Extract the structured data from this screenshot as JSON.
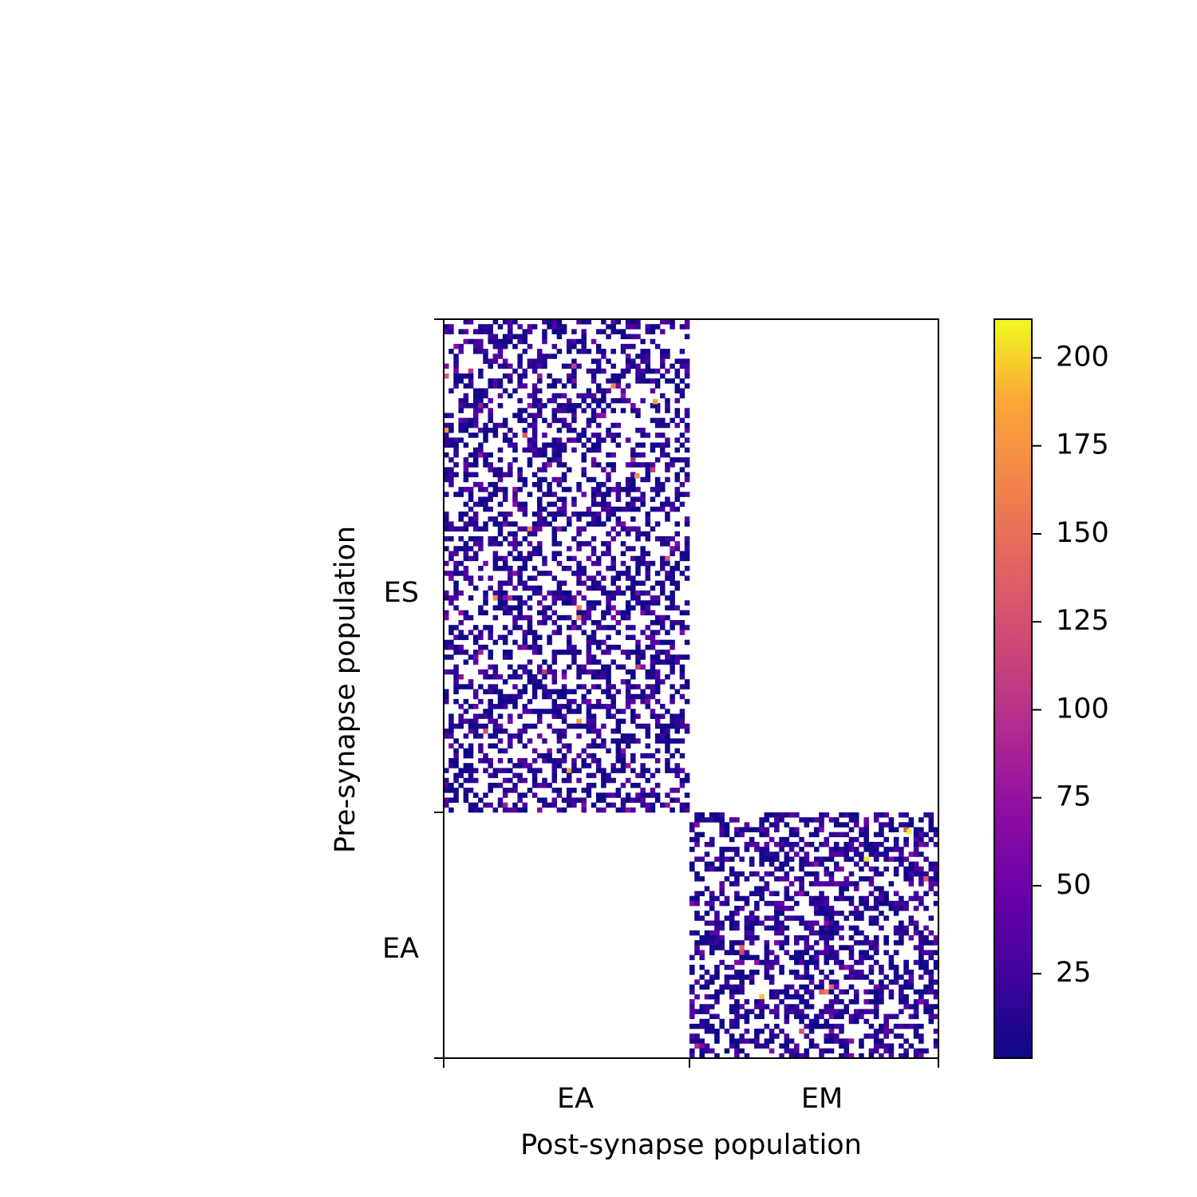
{
  "chart_data": {
    "type": "heatmap",
    "title": "",
    "xlabel": "Post-synapse population",
    "ylabel": "Pre-synapse population",
    "x_categories": [
      "EA",
      "EM"
    ],
    "y_categories": [
      "ES",
      "EA"
    ],
    "blocks": [
      {
        "pre": "ES",
        "post": "EA",
        "rows": 100,
        "cols": 50,
        "density": 0.45,
        "typical_weight_range": [
          1,
          40
        ],
        "peak_weight": 185
      },
      {
        "pre": "ES",
        "post": "EM",
        "rows": 100,
        "cols": 50,
        "density": 0.0
      },
      {
        "pre": "EA",
        "pre_rows": 50,
        "post": "EA",
        "cols": 50,
        "density": 0.0
      },
      {
        "pre": "EA",
        "post": "EM",
        "rows": 50,
        "cols": 50,
        "density": 0.5,
        "typical_weight_range": [
          1,
          40
        ],
        "peak_weight": 210
      }
    ],
    "colormap": "plasma",
    "colorbar": {
      "min": 1,
      "max": 211,
      "ticks": [
        25,
        50,
        75,
        100,
        125,
        150,
        175,
        200
      ],
      "tick_labels": [
        "25",
        "50",
        "75",
        "100",
        "125",
        "150",
        "175",
        "200"
      ]
    },
    "empty_cells": "white",
    "grid": false,
    "legend": "none"
  }
}
